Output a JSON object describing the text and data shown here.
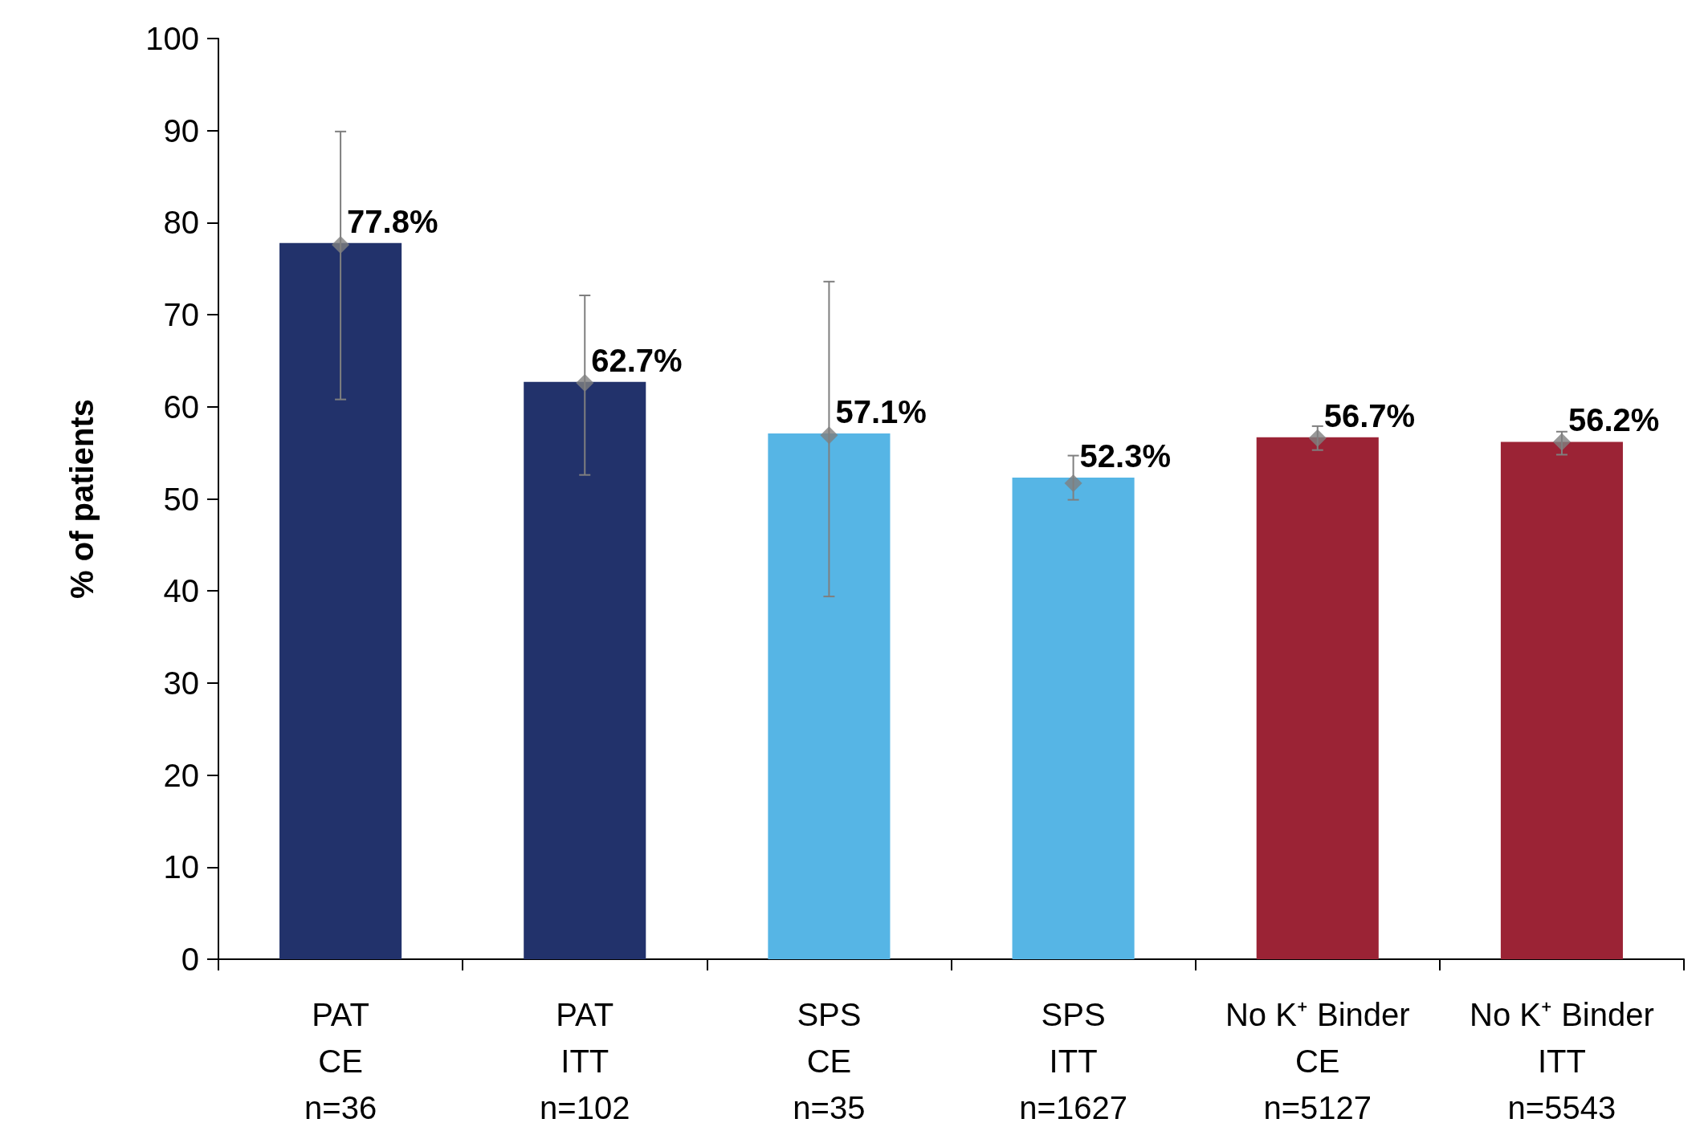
{
  "chart_data": {
    "type": "bar",
    "ylabel": "% of patients",
    "categories": [
      "PAT\nCE\nn=36",
      "PAT\nITT\nn=102",
      "SPS\nCE\nn=35",
      "SPS\nITT\nn=1627",
      "No K⁺ Binder\nCE\nn=5127",
      "No K⁺ Binder\nITT\nn=5543"
    ],
    "series": [
      {
        "values": [
          77.8,
          62.7,
          57.1,
          52.3,
          56.7,
          56.2
        ],
        "colors": [
          "#22326b",
          "#22326b",
          "#56b5e5",
          "#56b5e5",
          "#9b2335",
          "#9b2335"
        ],
        "value_labels": [
          "77.8%",
          "62.7%",
          "57.1%",
          "52.3%",
          "56.7%",
          "56.2%"
        ]
      },
      {
        "type": "scatter",
        "color": "#7f7f7f",
        "marker": "diamond",
        "x": [
          "PAT\nCE\nn=36",
          "PAT\nITT\nn=102",
          "SPS\nCE\nn=35",
          "SPS\nITT\nn=1627",
          "No K⁺ Binder\nCE\nn=5127",
          "No K⁺ Binder\nITT\nn=5543"
        ],
        "values": [
          77.6,
          62.6,
          56.9,
          51.7,
          56.6,
          56.2
        ],
        "errors": [
          [
            60.8,
            89.9
          ],
          [
            52.6,
            72.1
          ],
          [
            39.4,
            73.6
          ],
          [
            49.9,
            54.7
          ],
          [
            55.3,
            57.9
          ],
          [
            54.8,
            57.3
          ]
        ]
      }
    ],
    "ylim": [
      0,
      100
    ],
    "yticks": [
      0,
      10,
      20,
      30,
      40,
      50,
      60,
      70,
      80,
      90,
      100
    ],
    "grid": false
  }
}
